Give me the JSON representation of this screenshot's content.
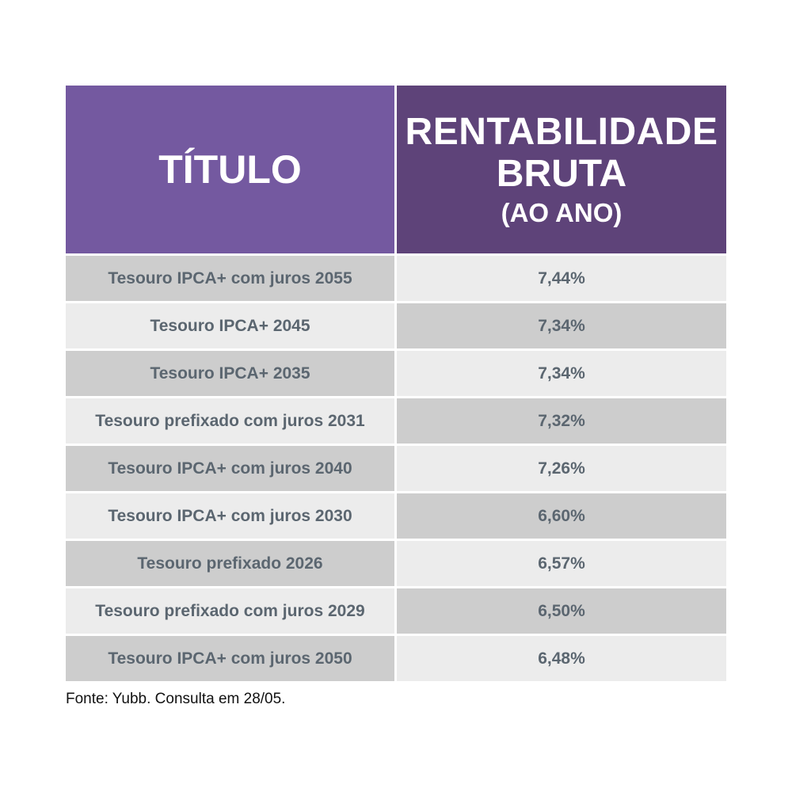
{
  "chart_data": {
    "type": "table",
    "columns": [
      "TÍTULO",
      "RENTABILIDADE BRUTA (AO ANO)"
    ],
    "header": {
      "col1": "TÍTULO",
      "col2_line1": "RENTABILIDADE",
      "col2_line2": "BRUTA",
      "col2_line3": "(AO ANO)"
    },
    "rows": [
      {
        "titulo": "Tesouro IPCA+ com juros 2055",
        "rentabilidade": "7,44%"
      },
      {
        "titulo": "Tesouro IPCA+ 2045",
        "rentabilidade": "7,34%"
      },
      {
        "titulo": "Tesouro IPCA+ 2035",
        "rentabilidade": "7,34%"
      },
      {
        "titulo": "Tesouro prefixado com juros 2031",
        "rentabilidade": "7,32%"
      },
      {
        "titulo": "Tesouro IPCA+ com juros 2040",
        "rentabilidade": "7,26%"
      },
      {
        "titulo": "Tesouro IPCA+ com juros 2030",
        "rentabilidade": "6,60%"
      },
      {
        "titulo": "Tesouro prefixado 2026",
        "rentabilidade": "6,57%"
      },
      {
        "titulo": "Tesouro prefixado com juros 2029",
        "rentabilidade": "6,50%"
      },
      {
        "titulo": "Tesouro IPCA+ com juros 2050",
        "rentabilidade": "6,48%"
      }
    ]
  },
  "source": "Fonte: Yubb. Consulta em 28/05.",
  "colors": {
    "header_title_bg": "#7459a0",
    "header_rent_bg": "#5e4379",
    "row_dark": "#cdcdcd",
    "row_light": "#ececec",
    "cell_text": "#5b6670"
  }
}
